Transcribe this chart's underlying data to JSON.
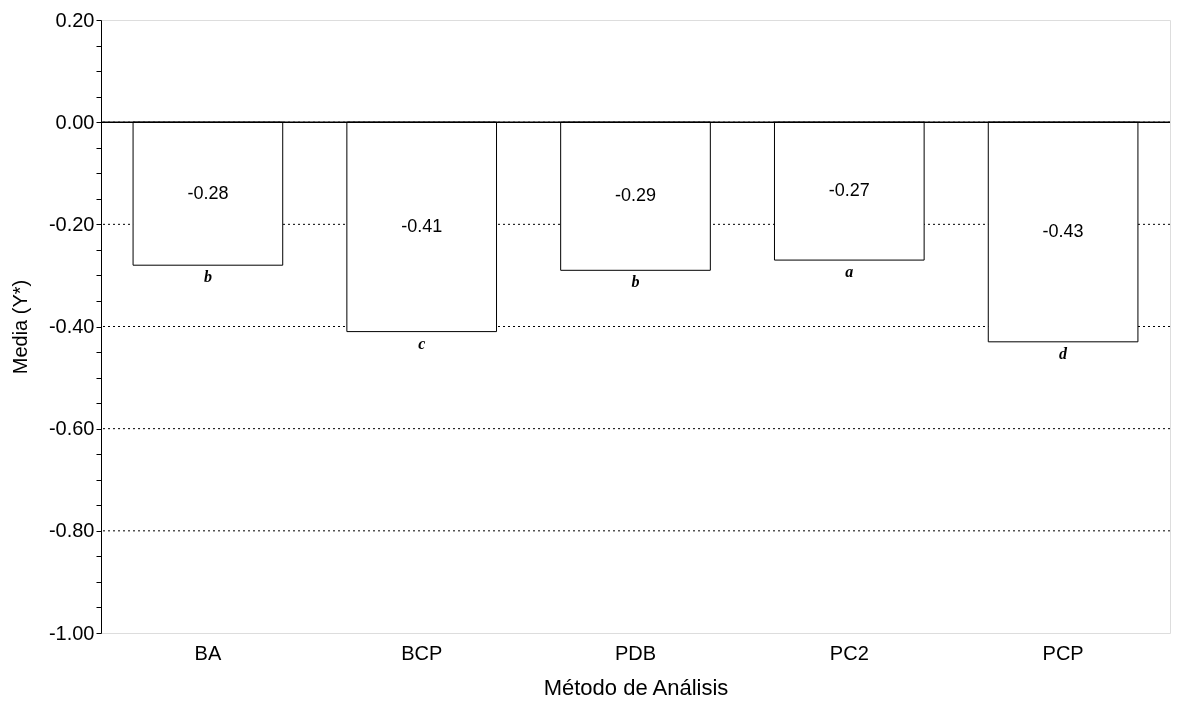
{
  "chart_data": {
    "type": "bar",
    "xlabel": "Método de Análisis",
    "ylabel": "Media (Y*)",
    "categories": [
      "BA",
      "BCP",
      "PDB",
      "PC2",
      "PCP"
    ],
    "values": [
      -0.28,
      -0.41,
      -0.29,
      -0.27,
      -0.43
    ],
    "color": "#ffffff",
    "data_labels": true,
    "ylim": [
      -1,
      0.2
    ],
    "yticks": [
      {
        "value": -1,
        "label": "-1.00"
      },
      {
        "value": -0.95,
        "label": null
      },
      {
        "value": -0.9,
        "label": null
      },
      {
        "value": -0.85,
        "label": null
      },
      {
        "value": -0.8,
        "label": "-0.80"
      },
      {
        "value": -0.75,
        "label": null
      },
      {
        "value": -0.7,
        "label": null
      },
      {
        "value": -0.65,
        "label": null
      },
      {
        "value": -0.6,
        "label": "-0.60"
      },
      {
        "value": -0.55,
        "label": null
      },
      {
        "value": -0.5,
        "label": null
      },
      {
        "value": -0.45,
        "label": null
      },
      {
        "value": -0.4,
        "label": "-0.40"
      },
      {
        "value": -0.35,
        "label": null
      },
      {
        "value": -0.3,
        "label": null
      },
      {
        "value": -0.25,
        "label": null
      },
      {
        "value": -0.2,
        "label": "-0.20"
      },
      {
        "value": -0.15,
        "label": null
      },
      {
        "value": -0.1,
        "label": null
      },
      {
        "value": -0.05,
        "label": null
      },
      {
        "value": 0,
        "label": "0.00"
      },
      {
        "value": 0.05,
        "label": null
      },
      {
        "value": 0.1,
        "label": null
      },
      {
        "value": 0.15,
        "label": null
      },
      {
        "value": 0.2,
        "label": "0.20"
      }
    ],
    "grid": "y",
    "ref_lines": [
      {
        "axis": "y",
        "value": 0,
        "color": "#000000",
        "line_style": "solid"
      }
    ],
    "annotations": [
      {
        "text": "b",
        "x": "BA",
        "y": -0.28
      },
      {
        "text": "c",
        "x": "BCP",
        "y": -0.41
      },
      {
        "text": "b",
        "x": "PDB",
        "y": -0.29
      },
      {
        "text": "a",
        "x": "PC2",
        "y": -0.27
      },
      {
        "text": "d",
        "x": "PCP",
        "y": -0.43
      }
    ]
  }
}
